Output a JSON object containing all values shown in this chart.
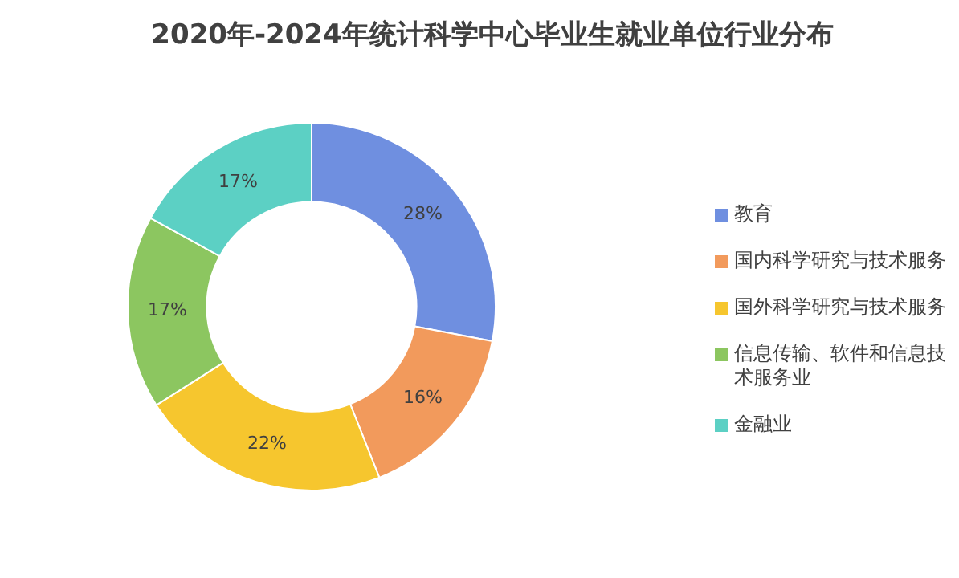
{
  "chart_data": {
    "type": "donut",
    "title": "2020年-2024年统计科学中心毕业生就业单位行业分布",
    "categories": [
      "教育",
      "国内科学研究与技术服务",
      "国外科学研究与技术服务",
      "信息传输、软件和信息技术服务业",
      "金融业"
    ],
    "values": [
      28,
      16,
      22,
      17,
      17
    ],
    "value_labels": [
      "28%",
      "16%",
      "22%",
      "17%",
      "17%"
    ],
    "colors": [
      "#6f8fe0",
      "#f29a5c",
      "#f6c62e",
      "#8cc660",
      "#5cd0c4"
    ],
    "legend": "right"
  }
}
